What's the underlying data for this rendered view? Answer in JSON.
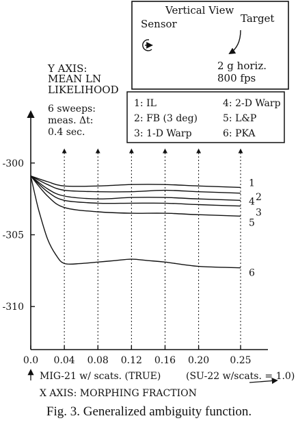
{
  "caption": "Fig. 3.   Generalized ambiguity function.",
  "inset": {
    "title": "Vertical View",
    "sensor_label": "Sensor",
    "target_label": "Target",
    "motion_line1": "2 g horiz.",
    "motion_line2": "800 fps"
  },
  "notes": {
    "sweeps_line1": "6 sweeps:",
    "sweeps_line2": "meas. Δt:",
    "sweeps_line3": "0.4 sec."
  },
  "chart_data": {
    "type": "line",
    "title": "",
    "ylabel_lines": [
      "Y AXIS:",
      "MEAN LN",
      "LIKELIHOOD"
    ],
    "xlabel": "X AXIS: MORPHING FRACTION",
    "x_left_note": "MIG-21 w/ scats. (TRUE)",
    "x_right_note": "(SU-22 w/scats. = 1.0)",
    "x_ticks": [
      0.0,
      0.04,
      0.08,
      0.12,
      0.16,
      0.2,
      0.25
    ],
    "x_tick_labels": [
      "0.0",
      "0.04",
      "0.08",
      "0.12",
      "0.16",
      "0.20",
      "0.25"
    ],
    "y_ticks": [
      -300,
      -305,
      -310
    ],
    "y_tick_labels": [
      "-300",
      "-305",
      "-310"
    ],
    "xlim": [
      0.0,
      0.25
    ],
    "ylim": [
      -313,
      -297
    ],
    "grid": false,
    "legend": {
      "placement": "top-right",
      "entries": [
        "1:  IL",
        "2:  FB (3 deg)",
        "3:  1-D Warp",
        "4:  2-D Warp",
        "5:  L&P",
        "6:  PKA"
      ]
    },
    "series": [
      {
        "name": "1",
        "x": [
          0.0,
          0.02,
          0.04,
          0.08,
          0.12,
          0.16,
          0.2,
          0.25
        ],
        "y": [
          -300.9,
          -301.3,
          -301.6,
          -301.6,
          -301.5,
          -301.5,
          -301.6,
          -301.7
        ]
      },
      {
        "name": "2",
        "x": [
          0.0,
          0.02,
          0.04,
          0.08,
          0.12,
          0.16,
          0.2,
          0.25
        ],
        "y": [
          -300.9,
          -301.5,
          -301.9,
          -302.0,
          -302.0,
          -301.9,
          -302.0,
          -302.1
        ]
      },
      {
        "name": "4",
        "x": [
          0.0,
          0.02,
          0.04,
          0.08,
          0.12,
          0.16,
          0.2,
          0.25
        ],
        "y": [
          -300.9,
          -301.8,
          -302.3,
          -302.5,
          -302.4,
          -302.4,
          -302.5,
          -302.6
        ]
      },
      {
        "name": "3",
        "x": [
          0.0,
          0.02,
          0.04,
          0.08,
          0.12,
          0.16,
          0.2,
          0.25
        ],
        "y": [
          -300.9,
          -302.0,
          -302.6,
          -302.8,
          -302.8,
          -302.8,
          -302.9,
          -303.0
        ]
      },
      {
        "name": "5",
        "x": [
          0.0,
          0.02,
          0.04,
          0.08,
          0.12,
          0.16,
          0.2,
          0.25
        ],
        "y": [
          -300.9,
          -302.3,
          -303.1,
          -303.4,
          -303.5,
          -303.5,
          -303.6,
          -303.7
        ]
      },
      {
        "name": "6",
        "x": [
          0.0,
          0.005,
          0.01,
          0.02,
          0.03,
          0.04,
          0.06,
          0.08,
          0.1,
          0.12,
          0.14,
          0.16,
          0.2,
          0.25
        ],
        "y": [
          -300.9,
          -302.2,
          -303.4,
          -305.3,
          -306.4,
          -307.0,
          -307.0,
          -306.9,
          -306.8,
          -306.7,
          -306.8,
          -306.9,
          -307.2,
          -307.3
        ]
      }
    ],
    "series_label_order": [
      "1",
      "2",
      "4",
      "3",
      "5",
      "6"
    ]
  }
}
